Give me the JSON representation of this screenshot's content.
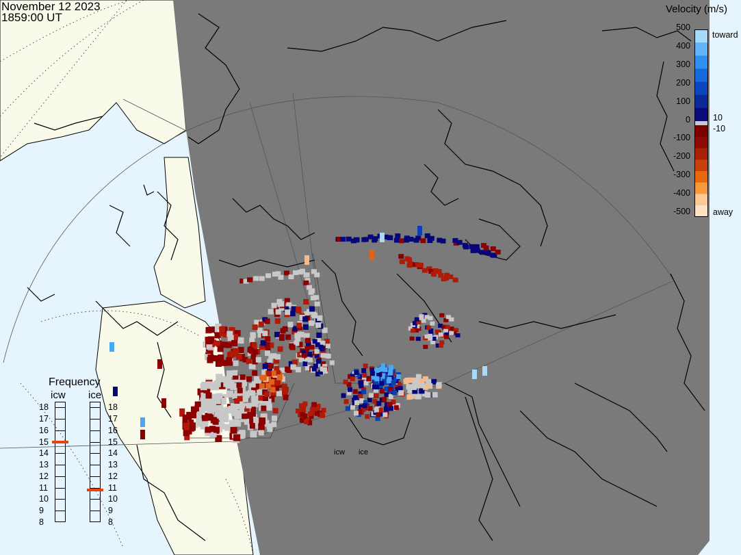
{
  "header": {
    "date": "November 12 2023",
    "time": "1859:00 UT"
  },
  "velocity_scale": {
    "title": "Velocity (m/s)",
    "ticks": [
      "500",
      "400",
      "300",
      "200",
      "100",
      "0",
      "-100",
      "-200",
      "-300",
      "-400",
      "-500"
    ],
    "toward_label": "toward",
    "away_label": "away",
    "plus_ten": "10",
    "minus_ten": "-10",
    "toward_colors": [
      "#0a0a78",
      "#0b2a9a",
      "#0d47c0",
      "#1569dc",
      "#2e91f0",
      "#63b4f8",
      "#a6d8fb"
    ],
    "away_colors": [
      "#7a0000",
      "#8e0a04",
      "#a82008",
      "#c9400a",
      "#e8690e",
      "#f89a3c",
      "#fcc896",
      "#fde2c6"
    ],
    "gray_color": "#c8c8c8"
  },
  "frequency": {
    "title": "Frequency",
    "radars": [
      {
        "name": "icw",
        "value_mhz": 15
      },
      {
        "name": "ice",
        "value_mhz": 10.8
      }
    ],
    "scale": [
      "18",
      "17",
      "16",
      "15",
      "14",
      "13",
      "12",
      "11",
      "10",
      "9",
      "8"
    ],
    "indicator_color": "#e8420e"
  },
  "radar_sites": [
    "icw",
    "ice"
  ],
  "map_colors": {
    "night": "#7a7a7a",
    "day_land": "#fafaeb",
    "day_ocean": "#e6f4fd",
    "coast": "#000000"
  }
}
